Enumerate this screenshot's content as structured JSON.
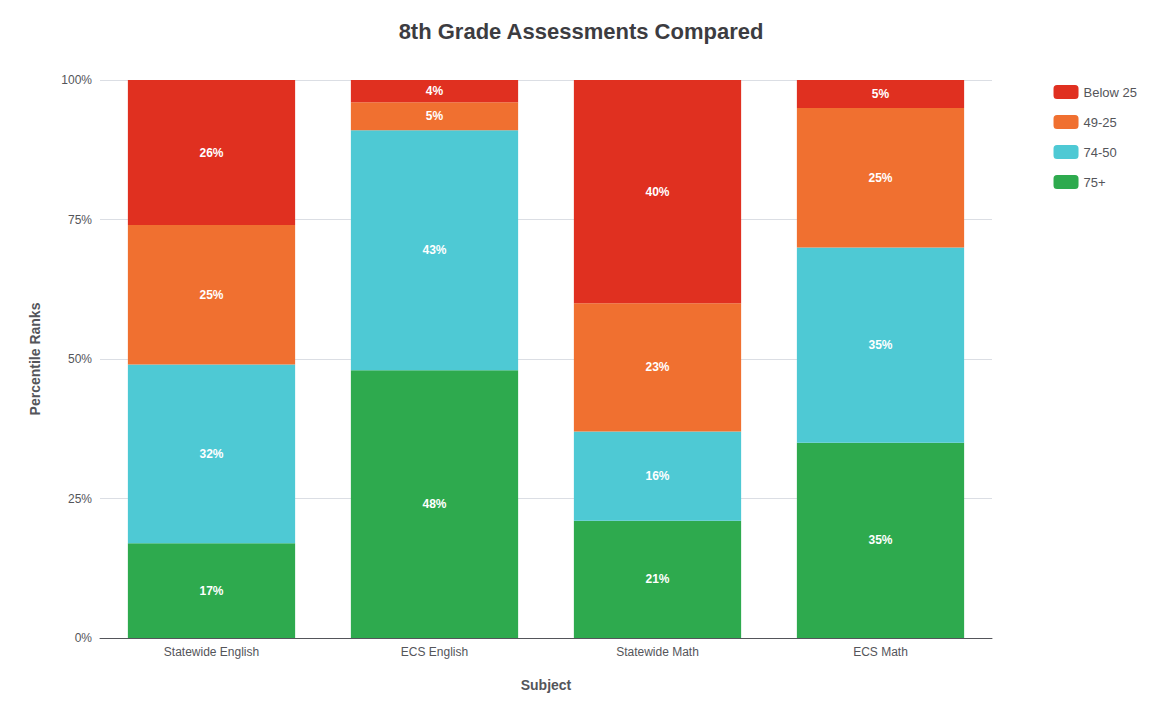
{
  "chart_data": {
    "type": "bar",
    "stacked": true,
    "title": "8th Grade Assessments Compared",
    "xlabel": "Subject",
    "ylabel": "Percentile Ranks",
    "categories": [
      "Statewide English",
      "ECS English",
      "Statewide Math",
      "ECS Math"
    ],
    "series": [
      {
        "name": "75+",
        "color": "#2eaa4e",
        "values": [
          17,
          48,
          21,
          35
        ],
        "value_labels": [
          "17%",
          "48%",
          "21%",
          "35%"
        ]
      },
      {
        "name": "74-50",
        "color": "#4ec9d4",
        "values": [
          32,
          43,
          16,
          35
        ],
        "value_labels": [
          "32%",
          "43%",
          "16%",
          "35%"
        ]
      },
      {
        "name": "49-25",
        "color": "#f07030",
        "values": [
          25,
          5,
          23,
          25
        ],
        "value_labels": [
          "25%",
          "5%",
          "23%",
          "25%"
        ]
      },
      {
        "name": "Below 25",
        "color": "#e03020",
        "values": [
          26,
          4,
          40,
          5
        ],
        "value_labels": [
          "26%",
          "4%",
          "40%",
          "5%"
        ]
      }
    ],
    "ylim": [
      0,
      100
    ],
    "yticks": [
      {
        "value": 0,
        "label": "0%"
      },
      {
        "value": 25,
        "label": "25%"
      },
      {
        "value": 50,
        "label": "50%"
      },
      {
        "value": 75,
        "label": "75%"
      },
      {
        "value": 100,
        "label": "100%"
      }
    ],
    "grid": true,
    "legend": "right",
    "data_labels": true
  }
}
